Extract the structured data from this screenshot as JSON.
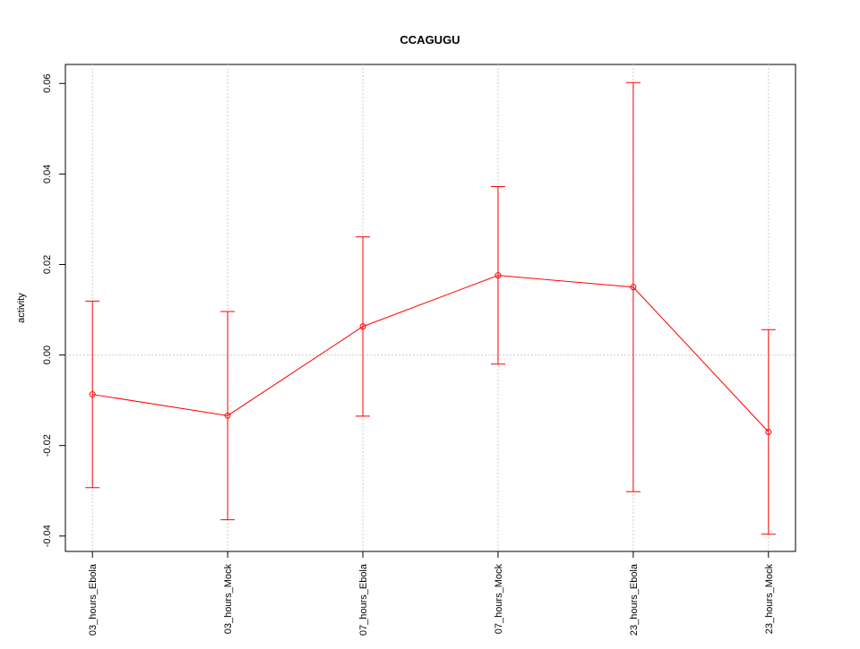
{
  "chart_data": {
    "type": "line",
    "title": "CCAGUGU",
    "y_label": "activity",
    "categories": [
      "03_hours_Ebola",
      "03_hours_Mock",
      "07_hours_Ebola",
      "07_hours_Mock",
      "23_hours_Ebola",
      "23_hours_Mock"
    ],
    "series": [
      {
        "color": "#ff0000",
        "values": [
          -0.0087,
          -0.0134,
          0.0063,
          0.0176,
          0.015,
          -0.017
        ],
        "errors": [
          0.0206,
          0.023,
          0.0198,
          0.0196,
          0.0452,
          0.0226
        ]
      }
    ],
    "ylim": [
      -0.0434,
      0.0642
    ],
    "yticks": [
      {
        "value": -0.04,
        "label": "-0.04"
      },
      {
        "value": -0.02,
        "label": "-0.02"
      },
      {
        "value": 0,
        "label": "0.00"
      },
      {
        "value": 0.02,
        "label": "0.02"
      },
      {
        "value": 0.04,
        "label": "0.04"
      },
      {
        "value": 0.06,
        "label": "0.06"
      }
    ],
    "grid": "x",
    "reference_line": 0
  }
}
